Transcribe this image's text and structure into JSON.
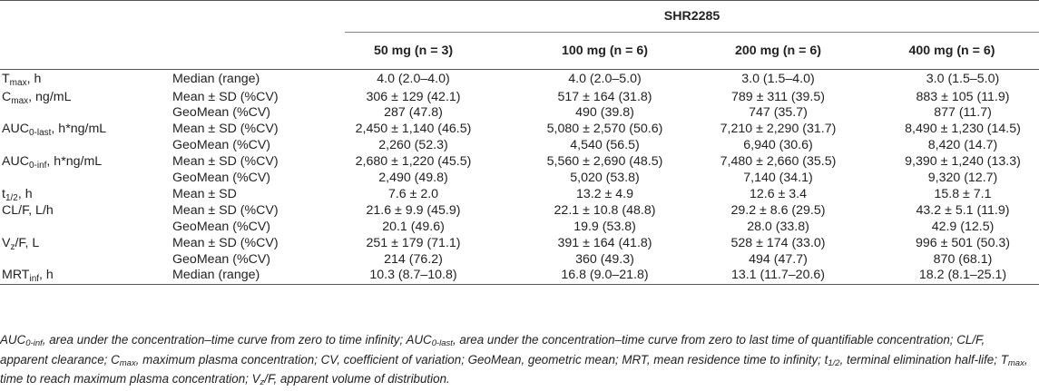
{
  "table": {
    "group_header": "SHR2285",
    "columns": [
      "50 mg (n = 3)",
      "100 mg (n = 6)",
      "200 mg (n = 6)",
      "400 mg (n = 6)"
    ],
    "rows": [
      {
        "param_main": "T",
        "param_sub": "max",
        "param_rest": ", h",
        "stat": "Median (range)",
        "values": [
          "4.0 (2.0–4.0)",
          "4.0 (2.0–5.0)",
          "3.0 (1.5–4.0)",
          "3.0 (1.5–5.0)"
        ]
      },
      {
        "param_main": "C",
        "param_sub": "max",
        "param_rest": ", ng/mL",
        "stat": "Mean ± SD (%CV)",
        "values": [
          "306 ± 129 (42.1)",
          "517 ± 164 (31.8)",
          "789 ± 311 (39.5)",
          "883 ± 105 (11.9)"
        ]
      },
      {
        "param_main": "",
        "param_sub": "",
        "param_rest": "",
        "stat": "GeoMean (%CV)",
        "values": [
          "287 (47.8)",
          "490 (39.8)",
          "747 (35.7)",
          "877 (11.7)"
        ]
      },
      {
        "param_main": "AUC",
        "param_sub": "0-last",
        "param_rest": ", h*ng/mL",
        "stat": "Mean ± SD (%CV)",
        "values": [
          "2,450 ± 1,140 (46.5)",
          "5,080 ± 2,570 (50.6)",
          "7,210 ± 2,290 (31.7)",
          "8,490 ± 1,230 (14.5)"
        ]
      },
      {
        "param_main": "",
        "param_sub": "",
        "param_rest": "",
        "stat": "GeoMean (%CV)",
        "values": [
          "2,260 (52.3)",
          "4,540 (56.5)",
          "6,940 (30.6)",
          "8,420 (14.7)"
        ]
      },
      {
        "param_main": "AUC",
        "param_sub": "0-inf",
        "param_rest": ", h*ng/mL",
        "stat": "Mean ± SD (%CV)",
        "values": [
          "2,680 ± 1,220 (45.5)",
          "5,560 ± 2,690 (48.5)",
          "7,480 ± 2,660 (35.5)",
          "9,390 ± 1,240 (13.3)"
        ]
      },
      {
        "param_main": "",
        "param_sub": "",
        "param_rest": "",
        "stat": "GeoMean (%CV)",
        "values": [
          "2,490 (49.8)",
          "5,020 (53.8)",
          "7,140 (34.1)",
          "9,320 (12.7)"
        ]
      },
      {
        "param_main": "t",
        "param_sub": "1/2",
        "param_rest": ", h",
        "stat": "Mean ± SD",
        "values": [
          "7.6 ± 2.0",
          "13.2 ± 4.9",
          "12.6 ± 3.4",
          "15.8 ± 7.1"
        ]
      },
      {
        "param_main": "CL/F, L/h",
        "param_sub": "",
        "param_rest": "",
        "stat": "Mean ± SD (%CV)",
        "values": [
          "21.6 ± 9.9 (45.9)",
          "22.1 ± 10.8 (48.8)",
          "29.2 ± 8.6 (29.5)",
          "43.2 ± 5.1 (11.9)"
        ]
      },
      {
        "param_main": "",
        "param_sub": "",
        "param_rest": "",
        "stat": "GeoMean (%CV)",
        "values": [
          "20.1 (49.6)",
          "19.9 (53.8)",
          "28.0 (33.8)",
          "42.9 (12.5)"
        ]
      },
      {
        "param_main": "V",
        "param_sub": "z",
        "param_rest": "/F, L",
        "stat": "Mean ± SD (%CV)",
        "values": [
          "251 ± 179 (71.1)",
          "391 ± 164 (41.8)",
          "528 ± 174 (33.0)",
          "996 ± 501 (50.3)"
        ]
      },
      {
        "param_main": "",
        "param_sub": "",
        "param_rest": "",
        "stat": "GeoMean (%CV)",
        "values": [
          "214 (76.2)",
          "360 (49.3)",
          "494 (47.7)",
          "870 (68.1)"
        ]
      },
      {
        "param_main": "MRT",
        "param_sub": "inf",
        "param_rest": ", h",
        "stat": "Median (range)",
        "values": [
          "10.3 (8.7–10.8)",
          "16.8 (9.0–21.8)",
          "13.1 (11.7–20.6)",
          "18.2 (8.1–25.1)"
        ]
      }
    ]
  },
  "footnote": [
    {
      "m": "AUC",
      "s": "0-inf",
      "r": ", area under the concentration–time curve from zero to time infinity; "
    },
    {
      "m": "AUC",
      "s": "0-last",
      "r": ", area under the concentration–time curve from zero to last time of quantifiable concentration; CL/F, apparent clearance; "
    },
    {
      "m": "C",
      "s": "max",
      "r": ", maximum plasma concentration; CV, coefficient of variation; GeoMean, geometric mean; MRT, mean residence time to infinity; "
    },
    {
      "m": "t",
      "s": "1/2",
      "r": ", terminal elimination half-life; "
    },
    {
      "m": "T",
      "s": "max",
      "r": ", time to reach maximum plasma concentration; "
    },
    {
      "m": "V",
      "s": "z",
      "r": "/F, apparent volume of distribution."
    }
  ]
}
